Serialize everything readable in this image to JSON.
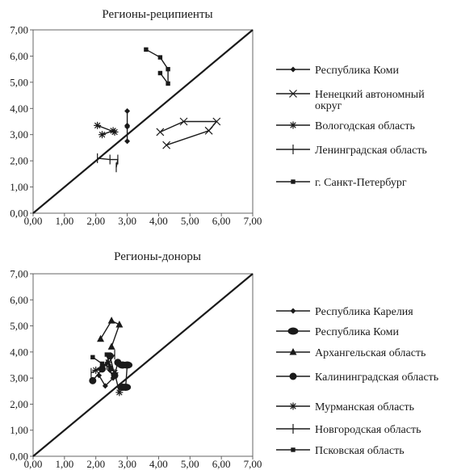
{
  "chart_data": [
    {
      "type": "line",
      "title": "Регионы-реципиенты",
      "xlabel": "",
      "ylabel": "",
      "xlim": [
        0,
        7
      ],
      "ylim": [
        0,
        7
      ],
      "x_ticks": [
        "0,00",
        "1,00",
        "2,00",
        "3,00",
        "4,00",
        "5,00",
        "6,00",
        "7,00"
      ],
      "y_ticks": [
        "0,00",
        "1,00",
        "2,00",
        "3,00",
        "4,00",
        "5,00",
        "6,00",
        "7,00"
      ],
      "grid": false,
      "legend": "right",
      "reference_line": {
        "type": "diagonal",
        "from": [
          0,
          0
        ],
        "to": [
          7,
          7
        ]
      },
      "series": [
        {
          "name": "Республика Коми",
          "marker": "diamond",
          "points": [
            [
              3.0,
              3.9
            ],
            [
              3.0,
              3.35
            ],
            [
              3.0,
              3.3
            ],
            [
              3.0,
              2.75
            ]
          ]
        },
        {
          "name": "Ненецкий автономный округ",
          "marker": "x",
          "points": [
            [
              4.25,
              2.6
            ],
            [
              5.6,
              3.15
            ],
            [
              5.85,
              3.5
            ],
            [
              4.8,
              3.5
            ],
            [
              4.05,
              3.1
            ]
          ]
        },
        {
          "name": "Вологодская область",
          "marker": "star",
          "points": [
            [
              2.05,
              3.35
            ],
            [
              2.6,
              3.1
            ],
            [
              2.55,
              3.15
            ],
            [
              2.2,
              3.0
            ]
          ]
        },
        {
          "name": "Ленинградская область",
          "marker": "plus",
          "points": [
            [
              2.05,
              2.1
            ],
            [
              2.45,
              2.05
            ],
            [
              2.7,
              2.05
            ],
            [
              2.65,
              1.75
            ]
          ]
        },
        {
          "name": "г. Санкт-Петербург",
          "marker": "square",
          "points": [
            [
              3.6,
              6.25
            ],
            [
              4.05,
              5.95
            ],
            [
              4.3,
              5.5
            ],
            [
              4.3,
              4.95
            ],
            [
              4.05,
              5.35
            ]
          ]
        }
      ]
    },
    {
      "type": "line",
      "title": "Регионы-доноры",
      "xlabel": "",
      "ylabel": "",
      "xlim": [
        0,
        7
      ],
      "ylim": [
        0,
        7
      ],
      "x_ticks": [
        "0,00",
        "1,00",
        "2,00",
        "3,00",
        "4,00",
        "5,00",
        "6,00",
        "7,00"
      ],
      "y_ticks": [
        "0,00",
        "1,00",
        "2,00",
        "3,00",
        "4,00",
        "5,00",
        "6,00",
        "7,00"
      ],
      "grid": false,
      "legend": "right",
      "reference_line": {
        "type": "diagonal",
        "from": [
          0,
          0
        ],
        "to": [
          7,
          7
        ]
      },
      "series": [
        {
          "name": "Республика Карелия",
          "marker": "diamond",
          "points": [
            [
              2.1,
              3.1
            ],
            [
              2.3,
              2.7
            ],
            [
              2.55,
              3.0
            ],
            [
              2.45,
              3.3
            ]
          ]
        },
        {
          "name": "Республика Коми",
          "marker": "oval",
          "points": [
            [
              2.85,
              3.5
            ],
            [
              3.0,
              3.5
            ],
            [
              2.95,
              2.65
            ],
            [
              2.85,
              2.65
            ]
          ]
        },
        {
          "name": "Архангельская область",
          "marker": "triangle",
          "points": [
            [
              2.15,
              4.5
            ],
            [
              2.5,
              5.2
            ],
            [
              2.75,
              5.05
            ],
            [
              2.5,
              4.2
            ]
          ]
        },
        {
          "name": "Калининградская область",
          "marker": "circle",
          "points": [
            [
              1.9,
              2.9
            ],
            [
              2.2,
              3.35
            ],
            [
              2.45,
              3.85
            ],
            [
              2.6,
              3.1
            ],
            [
              2.7,
              3.6
            ]
          ]
        },
        {
          "name": "Мурманская область",
          "marker": "star",
          "points": [
            [
              2.0,
              3.3
            ],
            [
              2.4,
              3.6
            ],
            [
              2.6,
              3.2
            ],
            [
              2.75,
              2.45
            ]
          ]
        },
        {
          "name": "Новгородская область",
          "marker": "plus",
          "points": [
            [
              1.85,
              3.2
            ],
            [
              2.15,
              3.4
            ],
            [
              2.35,
              3.5
            ],
            [
              2.6,
              3.9
            ]
          ]
        },
        {
          "name": "Псковская область",
          "marker": "square",
          "points": [
            [
              1.9,
              3.8
            ],
            [
              2.2,
              3.55
            ],
            [
              2.45,
              3.4
            ],
            [
              2.35,
              3.9
            ]
          ]
        }
      ]
    }
  ]
}
